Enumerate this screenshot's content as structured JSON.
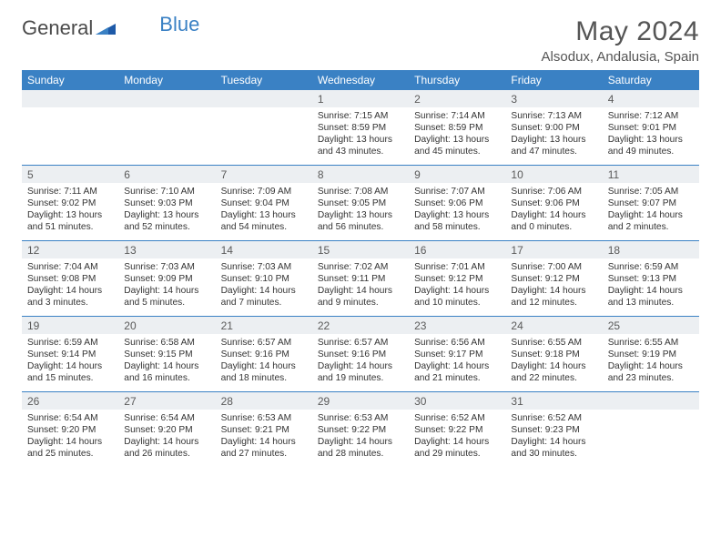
{
  "logo": {
    "part1": "General",
    "part2": "Blue"
  },
  "title": "May 2024",
  "location": "Alsodux, Andalusia, Spain",
  "colors": {
    "header_bg": "#3a81c4",
    "daynum_bg": "#eceff2",
    "text": "#333333",
    "title_color": "#555555"
  },
  "days_of_week": [
    "Sunday",
    "Monday",
    "Tuesday",
    "Wednesday",
    "Thursday",
    "Friday",
    "Saturday"
  ],
  "weeks": [
    [
      {
        "n": "",
        "s": "",
        "t": "",
        "d": ""
      },
      {
        "n": "",
        "s": "",
        "t": "",
        "d": ""
      },
      {
        "n": "",
        "s": "",
        "t": "",
        "d": ""
      },
      {
        "n": "1",
        "s": "Sunrise: 7:15 AM",
        "t": "Sunset: 8:59 PM",
        "d": "Daylight: 13 hours and 43 minutes."
      },
      {
        "n": "2",
        "s": "Sunrise: 7:14 AM",
        "t": "Sunset: 8:59 PM",
        "d": "Daylight: 13 hours and 45 minutes."
      },
      {
        "n": "3",
        "s": "Sunrise: 7:13 AM",
        "t": "Sunset: 9:00 PM",
        "d": "Daylight: 13 hours and 47 minutes."
      },
      {
        "n": "4",
        "s": "Sunrise: 7:12 AM",
        "t": "Sunset: 9:01 PM",
        "d": "Daylight: 13 hours and 49 minutes."
      }
    ],
    [
      {
        "n": "5",
        "s": "Sunrise: 7:11 AM",
        "t": "Sunset: 9:02 PM",
        "d": "Daylight: 13 hours and 51 minutes."
      },
      {
        "n": "6",
        "s": "Sunrise: 7:10 AM",
        "t": "Sunset: 9:03 PM",
        "d": "Daylight: 13 hours and 52 minutes."
      },
      {
        "n": "7",
        "s": "Sunrise: 7:09 AM",
        "t": "Sunset: 9:04 PM",
        "d": "Daylight: 13 hours and 54 minutes."
      },
      {
        "n": "8",
        "s": "Sunrise: 7:08 AM",
        "t": "Sunset: 9:05 PM",
        "d": "Daylight: 13 hours and 56 minutes."
      },
      {
        "n": "9",
        "s": "Sunrise: 7:07 AM",
        "t": "Sunset: 9:06 PM",
        "d": "Daylight: 13 hours and 58 minutes."
      },
      {
        "n": "10",
        "s": "Sunrise: 7:06 AM",
        "t": "Sunset: 9:06 PM",
        "d": "Daylight: 14 hours and 0 minutes."
      },
      {
        "n": "11",
        "s": "Sunrise: 7:05 AM",
        "t": "Sunset: 9:07 PM",
        "d": "Daylight: 14 hours and 2 minutes."
      }
    ],
    [
      {
        "n": "12",
        "s": "Sunrise: 7:04 AM",
        "t": "Sunset: 9:08 PM",
        "d": "Daylight: 14 hours and 3 minutes."
      },
      {
        "n": "13",
        "s": "Sunrise: 7:03 AM",
        "t": "Sunset: 9:09 PM",
        "d": "Daylight: 14 hours and 5 minutes."
      },
      {
        "n": "14",
        "s": "Sunrise: 7:03 AM",
        "t": "Sunset: 9:10 PM",
        "d": "Daylight: 14 hours and 7 minutes."
      },
      {
        "n": "15",
        "s": "Sunrise: 7:02 AM",
        "t": "Sunset: 9:11 PM",
        "d": "Daylight: 14 hours and 9 minutes."
      },
      {
        "n": "16",
        "s": "Sunrise: 7:01 AM",
        "t": "Sunset: 9:12 PM",
        "d": "Daylight: 14 hours and 10 minutes."
      },
      {
        "n": "17",
        "s": "Sunrise: 7:00 AM",
        "t": "Sunset: 9:12 PM",
        "d": "Daylight: 14 hours and 12 minutes."
      },
      {
        "n": "18",
        "s": "Sunrise: 6:59 AM",
        "t": "Sunset: 9:13 PM",
        "d": "Daylight: 14 hours and 13 minutes."
      }
    ],
    [
      {
        "n": "19",
        "s": "Sunrise: 6:59 AM",
        "t": "Sunset: 9:14 PM",
        "d": "Daylight: 14 hours and 15 minutes."
      },
      {
        "n": "20",
        "s": "Sunrise: 6:58 AM",
        "t": "Sunset: 9:15 PM",
        "d": "Daylight: 14 hours and 16 minutes."
      },
      {
        "n": "21",
        "s": "Sunrise: 6:57 AM",
        "t": "Sunset: 9:16 PM",
        "d": "Daylight: 14 hours and 18 minutes."
      },
      {
        "n": "22",
        "s": "Sunrise: 6:57 AM",
        "t": "Sunset: 9:16 PM",
        "d": "Daylight: 14 hours and 19 minutes."
      },
      {
        "n": "23",
        "s": "Sunrise: 6:56 AM",
        "t": "Sunset: 9:17 PM",
        "d": "Daylight: 14 hours and 21 minutes."
      },
      {
        "n": "24",
        "s": "Sunrise: 6:55 AM",
        "t": "Sunset: 9:18 PM",
        "d": "Daylight: 14 hours and 22 minutes."
      },
      {
        "n": "25",
        "s": "Sunrise: 6:55 AM",
        "t": "Sunset: 9:19 PM",
        "d": "Daylight: 14 hours and 23 minutes."
      }
    ],
    [
      {
        "n": "26",
        "s": "Sunrise: 6:54 AM",
        "t": "Sunset: 9:20 PM",
        "d": "Daylight: 14 hours and 25 minutes."
      },
      {
        "n": "27",
        "s": "Sunrise: 6:54 AM",
        "t": "Sunset: 9:20 PM",
        "d": "Daylight: 14 hours and 26 minutes."
      },
      {
        "n": "28",
        "s": "Sunrise: 6:53 AM",
        "t": "Sunset: 9:21 PM",
        "d": "Daylight: 14 hours and 27 minutes."
      },
      {
        "n": "29",
        "s": "Sunrise: 6:53 AM",
        "t": "Sunset: 9:22 PM",
        "d": "Daylight: 14 hours and 28 minutes."
      },
      {
        "n": "30",
        "s": "Sunrise: 6:52 AM",
        "t": "Sunset: 9:22 PM",
        "d": "Daylight: 14 hours and 29 minutes."
      },
      {
        "n": "31",
        "s": "Sunrise: 6:52 AM",
        "t": "Sunset: 9:23 PM",
        "d": "Daylight: 14 hours and 30 minutes."
      },
      {
        "n": "",
        "s": "",
        "t": "",
        "d": ""
      }
    ]
  ]
}
